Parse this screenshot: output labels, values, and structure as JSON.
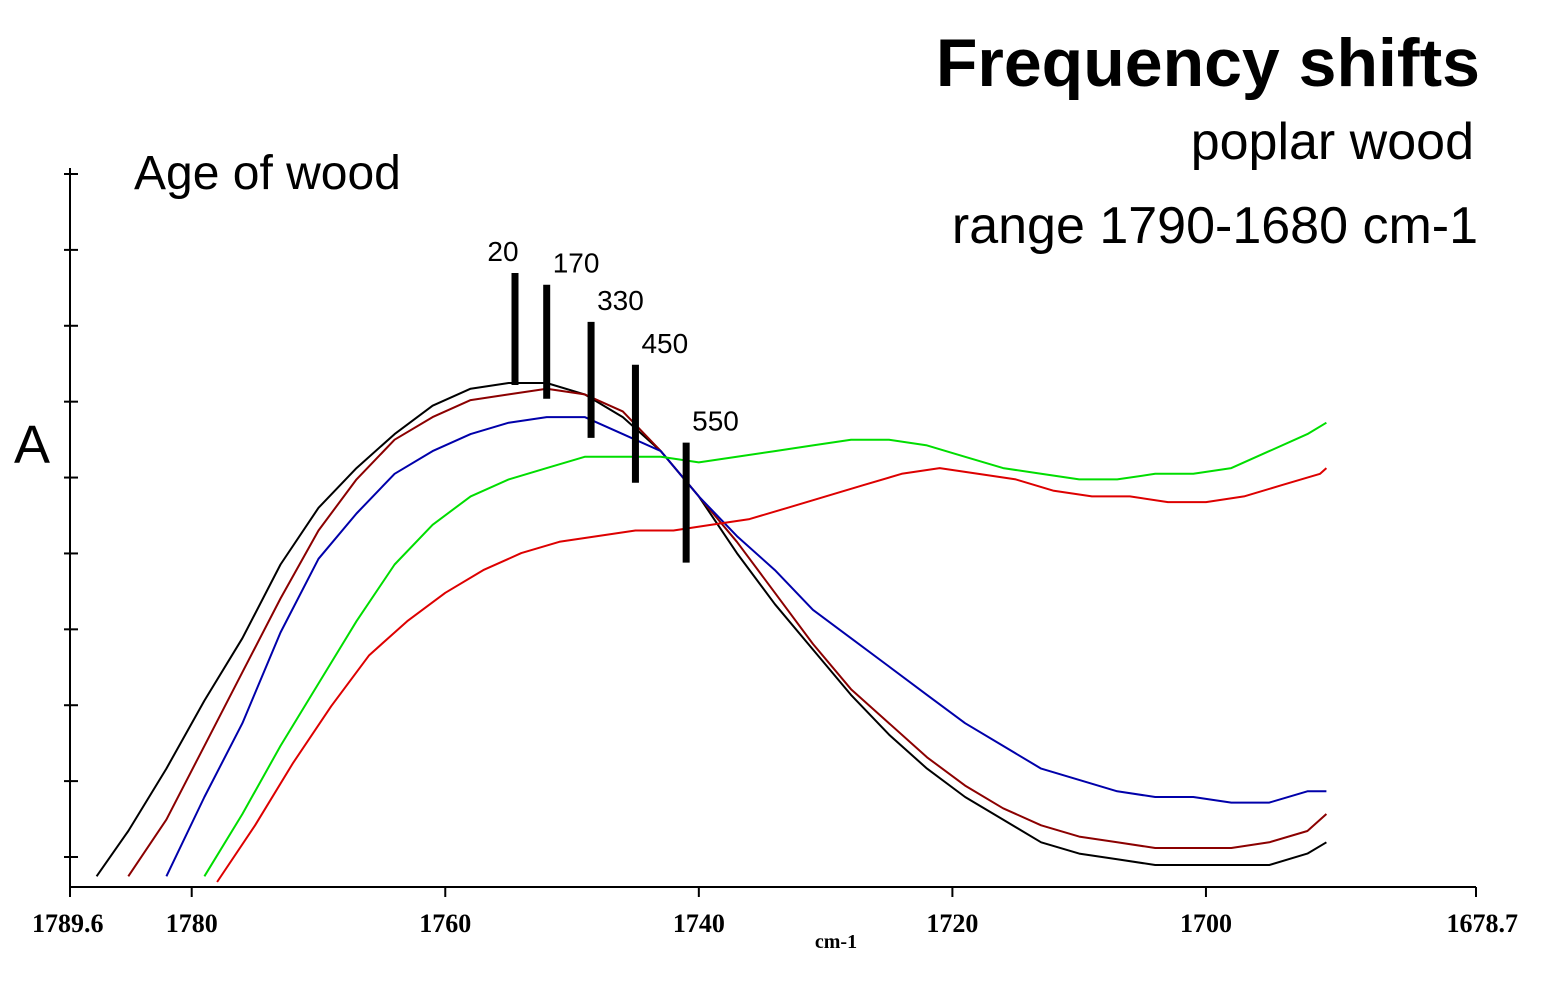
{
  "header": {
    "title": "Frequency shifts",
    "subtitle": "poplar wood",
    "range_text": "range 1790-1680 cm-1"
  },
  "chart_data": {
    "type": "line",
    "title": "Frequency shifts",
    "subtitle": "poplar wood",
    "xlabel": "cm-1",
    "ylabel": "A",
    "legend_title": "Age of wood",
    "x_reversed": true,
    "xlim": [
      1789.6,
      1678.7
    ],
    "ylim": [
      0,
      1
    ],
    "x_ticks": [
      1789.6,
      1780,
      1760,
      1740,
      1720,
      1700,
      1678.7
    ],
    "x_tick_labels": [
      "1789.6",
      "1780",
      "1760",
      "1740",
      "1720",
      "1700",
      "1678.7"
    ],
    "y_tick_count": 10,
    "grid": false,
    "series": [
      {
        "name": "20",
        "color": "#000000",
        "marker_x": 1754.5,
        "x": [
          1787.5,
          1785,
          1782,
          1779,
          1776,
          1773,
          1770,
          1767,
          1764,
          1761,
          1758,
          1755,
          1752,
          1749,
          1746,
          1743,
          1740,
          1737,
          1734,
          1731,
          1728,
          1725,
          1722,
          1719,
          1716,
          1713,
          1710,
          1707,
          1704,
          1701,
          1698,
          1695,
          1692,
          1690.5
        ],
        "values": [
          0.01,
          0.09,
          0.2,
          0.32,
          0.43,
          0.56,
          0.66,
          0.73,
          0.79,
          0.84,
          0.87,
          0.88,
          0.88,
          0.86,
          0.82,
          0.76,
          0.68,
          0.58,
          0.49,
          0.41,
          0.33,
          0.26,
          0.2,
          0.15,
          0.11,
          0.07,
          0.05,
          0.04,
          0.03,
          0.03,
          0.03,
          0.03,
          0.05,
          0.07
        ]
      },
      {
        "name": "170",
        "color": "#8b0000",
        "marker_x": 1752,
        "x": [
          1785,
          1782,
          1779,
          1776,
          1773,
          1770,
          1767,
          1764,
          1761,
          1758,
          1755,
          1752,
          1749,
          1746,
          1743,
          1740,
          1737,
          1734,
          1731,
          1728,
          1725,
          1722,
          1719,
          1716,
          1713,
          1710,
          1707,
          1704,
          1701,
          1698,
          1695,
          1692,
          1690.5
        ],
        "values": [
          0.01,
          0.11,
          0.24,
          0.37,
          0.5,
          0.62,
          0.71,
          0.78,
          0.82,
          0.85,
          0.86,
          0.87,
          0.86,
          0.83,
          0.76,
          0.68,
          0.6,
          0.51,
          0.42,
          0.34,
          0.28,
          0.22,
          0.17,
          0.13,
          0.1,
          0.08,
          0.07,
          0.06,
          0.06,
          0.06,
          0.07,
          0.09,
          0.12
        ]
      },
      {
        "name": "330",
        "color": "#0000aa",
        "marker_x": 1748.5,
        "x": [
          1782,
          1779,
          1776,
          1773,
          1770,
          1767,
          1764,
          1761,
          1758,
          1755,
          1752,
          1749,
          1746,
          1743,
          1740,
          1737,
          1734,
          1731,
          1728,
          1725,
          1722,
          1719,
          1716,
          1713,
          1710,
          1707,
          1704,
          1701,
          1698,
          1695,
          1692,
          1690.5
        ],
        "values": [
          0.01,
          0.15,
          0.28,
          0.44,
          0.57,
          0.65,
          0.72,
          0.76,
          0.79,
          0.81,
          0.82,
          0.82,
          0.79,
          0.76,
          0.68,
          0.61,
          0.55,
          0.48,
          0.43,
          0.38,
          0.33,
          0.28,
          0.24,
          0.2,
          0.18,
          0.16,
          0.15,
          0.15,
          0.14,
          0.14,
          0.16,
          0.16
        ]
      },
      {
        "name": "450",
        "color": "#00dd00",
        "marker_x": 1745,
        "x": [
          1779,
          1776,
          1773,
          1770,
          1767,
          1764,
          1761,
          1758,
          1755,
          1752,
          1749,
          1746,
          1743,
          1740,
          1737,
          1734,
          1731,
          1728,
          1725,
          1722,
          1719,
          1716,
          1713,
          1710,
          1707,
          1704,
          1701,
          1698,
          1695,
          1692,
          1690.5
        ],
        "values": [
          0.01,
          0.12,
          0.24,
          0.35,
          0.46,
          0.56,
          0.63,
          0.68,
          0.71,
          0.73,
          0.75,
          0.75,
          0.75,
          0.74,
          0.75,
          0.76,
          0.77,
          0.78,
          0.78,
          0.77,
          0.75,
          0.73,
          0.72,
          0.71,
          0.71,
          0.72,
          0.72,
          0.73,
          0.76,
          0.79,
          0.81
        ]
      },
      {
        "name": "550",
        "color": "#dd0000",
        "marker_x": 1741,
        "x": [
          1778,
          1775,
          1772,
          1769,
          1766,
          1763,
          1760,
          1757,
          1754,
          1751,
          1748,
          1745,
          1742,
          1739,
          1736,
          1733,
          1730,
          1727,
          1724,
          1721,
          1718,
          1715,
          1712,
          1709,
          1706,
          1703,
          1700,
          1697,
          1694,
          1691,
          1690.5
        ],
        "values": [
          0.0,
          0.1,
          0.21,
          0.31,
          0.4,
          0.46,
          0.51,
          0.55,
          0.58,
          0.6,
          0.61,
          0.62,
          0.62,
          0.63,
          0.64,
          0.66,
          0.68,
          0.7,
          0.72,
          0.73,
          0.72,
          0.71,
          0.69,
          0.68,
          0.68,
          0.67,
          0.67,
          0.68,
          0.7,
          0.72,
          0.73
        ]
      }
    ]
  }
}
